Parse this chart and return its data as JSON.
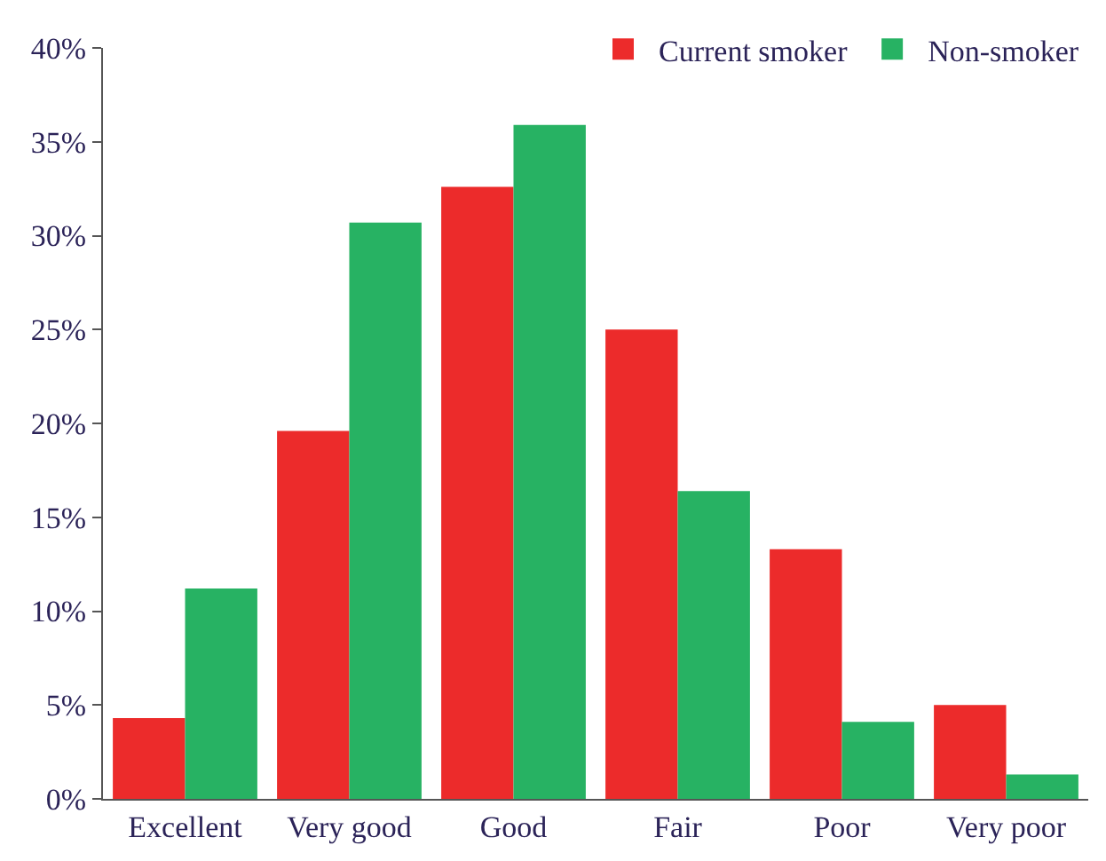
{
  "chart_data": {
    "type": "bar",
    "categories": [
      "Excellent",
      "Very good",
      "Good",
      "Fair",
      "Poor",
      "Very poor"
    ],
    "series": [
      {
        "name": "Current smoker",
        "color": "#ec2b2b",
        "values": [
          4.3,
          19.6,
          32.6,
          25.0,
          13.3,
          5.0
        ]
      },
      {
        "name": "Non-smoker",
        "color": "#27b263",
        "values": [
          11.2,
          30.7,
          35.9,
          16.4,
          4.1,
          1.3
        ]
      }
    ],
    "ylim": [
      0,
      40
    ],
    "yticks": [
      {
        "value": 0,
        "label": "0%"
      },
      {
        "value": 5,
        "label": "5%"
      },
      {
        "value": 10,
        "label": "10%"
      },
      {
        "value": 15,
        "label": "15%"
      },
      {
        "value": 20,
        "label": "20%"
      },
      {
        "value": 25,
        "label": "25%"
      },
      {
        "value": 30,
        "label": "30%"
      },
      {
        "value": 35,
        "label": "35%"
      },
      {
        "value": 40,
        "label": "40%"
      }
    ],
    "legend": "top right"
  }
}
